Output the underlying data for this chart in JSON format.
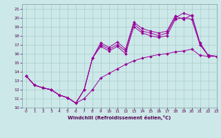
{
  "xlabel": "Windchill (Refroidissement éolien,°C)",
  "bg_color": "#cce8e8",
  "grid_color": "#aacccc",
  "line_color": "#990099",
  "xlim": [
    -0.5,
    23
  ],
  "ylim": [
    10,
    21.5
  ],
  "yticks": [
    10,
    11,
    12,
    13,
    14,
    15,
    16,
    17,
    18,
    19,
    20,
    21
  ],
  "xticks": [
    0,
    1,
    2,
    3,
    4,
    5,
    6,
    7,
    8,
    9,
    10,
    11,
    12,
    13,
    14,
    15,
    16,
    17,
    18,
    19,
    20,
    21,
    22,
    23
  ],
  "series": [
    [
      13.5,
      12.5,
      12.2,
      12.0,
      11.4,
      11.1,
      10.5,
      11.0,
      12.0,
      13.3,
      13.8,
      14.3,
      14.8,
      15.2,
      15.5,
      15.7,
      15.9,
      16.0,
      16.2,
      16.3,
      16.5,
      15.8,
      15.7,
      15.7
    ],
    [
      13.5,
      12.5,
      12.2,
      12.0,
      11.4,
      11.1,
      10.5,
      12.0,
      15.5,
      17.2,
      16.7,
      17.3,
      16.5,
      19.5,
      18.8,
      18.5,
      18.3,
      18.5,
      20.2,
      19.8,
      20.3,
      17.2,
      15.8,
      15.7
    ],
    [
      13.5,
      12.5,
      12.2,
      12.0,
      11.4,
      11.1,
      10.5,
      12.0,
      15.5,
      17.0,
      16.5,
      17.0,
      16.3,
      19.3,
      18.5,
      18.3,
      18.0,
      18.3,
      20.0,
      20.5,
      20.2,
      17.0,
      15.8,
      15.7
    ],
    [
      13.5,
      12.5,
      12.2,
      12.0,
      11.4,
      11.1,
      10.5,
      12.0,
      15.5,
      16.8,
      16.3,
      16.8,
      16.0,
      19.0,
      18.3,
      18.0,
      17.8,
      18.0,
      19.8,
      20.0,
      19.8,
      17.0,
      15.8,
      15.7
    ]
  ]
}
